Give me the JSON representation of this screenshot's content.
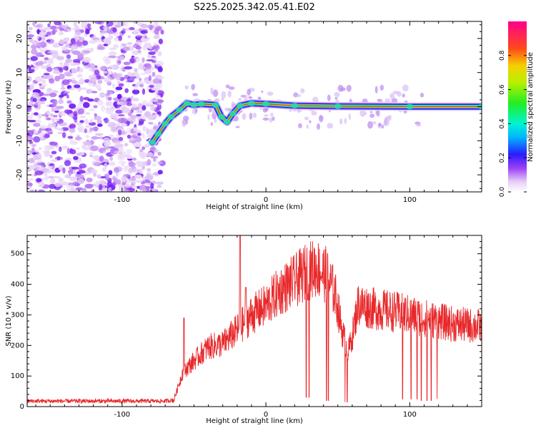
{
  "title": "S225.2025.342.05.41.E02",
  "colors": {
    "snr_line": "#e8282a",
    "frame": "#000000"
  },
  "chart_data": [
    {
      "type": "heatmap",
      "name": "spectrogram",
      "xlabel": "Height of straight line (km)",
      "ylabel": "Frequency (Hz)",
      "xlim": [
        -166,
        150
      ],
      "ylim": [
        -25,
        25
      ],
      "xticks": [
        -100,
        0,
        100
      ],
      "yticks": [
        -20,
        -10,
        0,
        10,
        20
      ],
      "colorbar": {
        "label": "Normalized spectral amplitude",
        "range": [
          0,
          1
        ],
        "ticks": [
          0.0,
          0.2,
          0.4,
          0.6,
          0.8
        ],
        "colormap": "rainbow (purple-blue-cyan-green-yellow-red-magenta)"
      },
      "signal_track": [
        {
          "x": -79,
          "y": -10.5
        },
        {
          "x": -75,
          "y": -8
        },
        {
          "x": -70,
          "y": -5
        },
        {
          "x": -66,
          "y": -3
        },
        {
          "x": -60,
          "y": -1
        },
        {
          "x": -55,
          "y": 1
        },
        {
          "x": -50,
          "y": 0.5
        },
        {
          "x": -45,
          "y": 0.8
        },
        {
          "x": -35,
          "y": 0.5
        },
        {
          "x": -31,
          "y": -3
        },
        {
          "x": -27,
          "y": -4.5
        },
        {
          "x": -23,
          "y": -2
        },
        {
          "x": -18,
          "y": 0.3
        },
        {
          "x": -10,
          "y": 1
        },
        {
          "x": 0,
          "y": 0.8
        },
        {
          "x": 20,
          "y": 0.3
        },
        {
          "x": 50,
          "y": 0.1
        },
        {
          "x": 100,
          "y": 0
        },
        {
          "x": 150,
          "y": 0
        }
      ],
      "noise_region_x": [
        -166,
        -72
      ]
    },
    {
      "type": "line",
      "name": "snr",
      "xlabel": "Height of straight line (km)",
      "ylabel": "SNR (10 * v/v)",
      "xlim": [
        -166,
        150
      ],
      "ylim": [
        0,
        560
      ],
      "xticks": [
        -100,
        0,
        100
      ],
      "yticks": [
        0,
        100,
        200,
        300,
        400,
        500
      ],
      "envelope": [
        {
          "x": -166,
          "y": 18
        },
        {
          "x": -70,
          "y": 18
        },
        {
          "x": -64,
          "y": 22
        },
        {
          "x": -58,
          "y": 110
        },
        {
          "x": -50,
          "y": 150
        },
        {
          "x": -40,
          "y": 195
        },
        {
          "x": -30,
          "y": 205
        },
        {
          "x": -20,
          "y": 250
        },
        {
          "x": -10,
          "y": 300
        },
        {
          "x": 0,
          "y": 330
        },
        {
          "x": 10,
          "y": 380
        },
        {
          "x": 20,
          "y": 410
        },
        {
          "x": 28,
          "y": 440
        },
        {
          "x": 35,
          "y": 455
        },
        {
          "x": 42,
          "y": 430
        },
        {
          "x": 48,
          "y": 370
        },
        {
          "x": 53,
          "y": 250
        },
        {
          "x": 57,
          "y": 175
        },
        {
          "x": 60,
          "y": 230
        },
        {
          "x": 64,
          "y": 335
        },
        {
          "x": 75,
          "y": 320
        },
        {
          "x": 90,
          "y": 310
        },
        {
          "x": 110,
          "y": 290
        },
        {
          "x": 130,
          "y": 270
        },
        {
          "x": 150,
          "y": 262
        }
      ],
      "spikes": [
        {
          "x": -57,
          "y": 290
        },
        {
          "x": -18,
          "y": 560
        },
        {
          "x": -14,
          "y": 390
        }
      ],
      "dropouts": [
        {
          "x": 28,
          "y": 30
        },
        {
          "x": 30,
          "y": 30
        },
        {
          "x": 42,
          "y": 20
        },
        {
          "x": 43.5,
          "y": 20
        },
        {
          "x": 55,
          "y": 15
        },
        {
          "x": 56.5,
          "y": 15
        },
        {
          "x": 95,
          "y": 25
        },
        {
          "x": 101,
          "y": 25
        },
        {
          "x": 105,
          "y": 25
        },
        {
          "x": 108,
          "y": 20
        },
        {
          "x": 112,
          "y": 20
        },
        {
          "x": 115,
          "y": 20
        },
        {
          "x": 119,
          "y": 25
        }
      ]
    }
  ]
}
